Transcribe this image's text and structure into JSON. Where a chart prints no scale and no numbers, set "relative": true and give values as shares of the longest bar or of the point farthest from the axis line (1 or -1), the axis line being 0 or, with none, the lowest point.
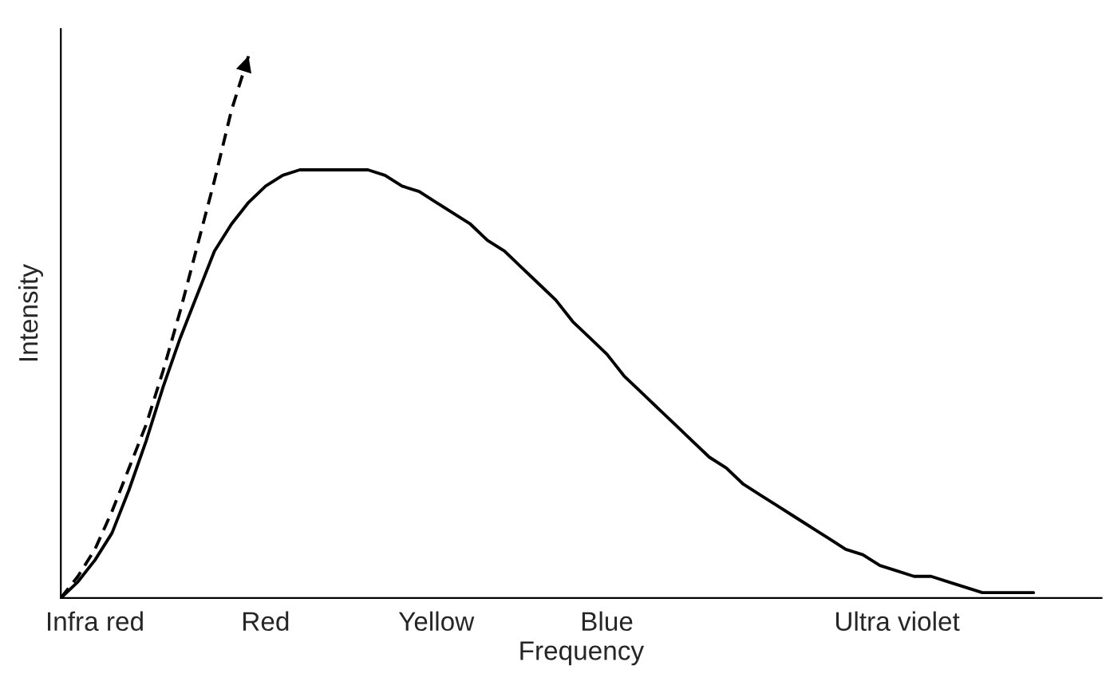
{
  "chart_data": {
    "type": "line",
    "relative": true,
    "xlabel": "Frequency",
    "ylabel": "Intensity",
    "categories": [
      null,
      null,
      "Infra red",
      null,
      null,
      null,
      null,
      null,
      null,
      null,
      null,
      null,
      "Red",
      null,
      null,
      null,
      null,
      null,
      null,
      null,
      null,
      null,
      "Yellow",
      null,
      null,
      null,
      null,
      null,
      null,
      null,
      null,
      null,
      "Blue",
      null,
      null,
      null,
      null,
      null,
      null,
      null,
      null,
      null,
      null,
      null,
      null,
      null,
      null,
      null,
      null,
      "Ultra violet",
      null,
      null,
      null,
      null,
      null,
      null,
      null,
      null
    ],
    "series": [
      {
        "color": "#000000",
        "line_style": "solid",
        "values": [
          0,
          0.03,
          0.07,
          0.12,
          0.2,
          0.29,
          0.39,
          0.48,
          0.56,
          0.64,
          0.69,
          0.73,
          0.76,
          0.78,
          0.79,
          0.79,
          0.79,
          0.79,
          0.79,
          0.78,
          0.76,
          0.75,
          0.73,
          0.71,
          0.69,
          0.66,
          0.64,
          0.61,
          0.58,
          0.55,
          0.51,
          0.48,
          0.45,
          0.41,
          0.38,
          0.35,
          0.32,
          0.29,
          0.26,
          0.24,
          0.21,
          0.19,
          0.17,
          0.15,
          0.13,
          0.11,
          0.09,
          0.08,
          0.06,
          0.05,
          0.04,
          0.04,
          0.03,
          0.02,
          0.01,
          0.01,
          0.01,
          0.01
        ]
      },
      {
        "color": "#000000",
        "line_style": "dashed",
        "values": [
          0,
          0.04,
          0.09,
          0.16,
          0.24,
          0.32,
          0.42,
          0.53,
          0.65,
          0.77,
          0.9,
          1,
          null,
          null,
          null,
          null,
          null,
          null,
          null,
          null,
          null,
          null,
          null,
          null,
          null,
          null,
          null,
          null,
          null,
          null,
          null,
          null,
          null,
          null,
          null,
          null,
          null,
          null,
          null,
          null,
          null,
          null,
          null,
          null,
          null,
          null,
          null,
          null,
          null,
          null,
          null,
          null,
          null,
          null,
          null,
          null,
          null,
          null
        ]
      }
    ],
    "grid": false,
    "legend": false
  }
}
